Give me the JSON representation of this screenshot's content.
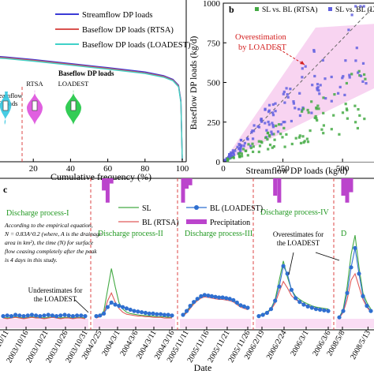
{
  "chart_data": [
    {
      "panel": "a",
      "type": "line",
      "xlabel": "Cumulative frequency (%)",
      "xticks": [
        "20",
        "40",
        "60",
        "80",
        "100"
      ],
      "xlim": [
        0,
        100
      ],
      "ylim": [
        0,
        100
      ],
      "legend": "top-right",
      "series": [
        {
          "name": "Streamflow DP loads",
          "color": "#3b3bd6",
          "x": [
            0,
            5,
            20,
            40,
            60,
            80,
            90,
            95,
            98,
            99.3,
            100
          ],
          "y": [
            65.5,
            65.1,
            63.5,
            61,
            58.5,
            55.8,
            53.5,
            51.2,
            47.5,
            38,
            1
          ]
        },
        {
          "name": "Baseflow DP loads (RTSA)",
          "color": "#d9534f",
          "x": [
            0,
            5,
            20,
            40,
            60,
            80,
            90,
            95,
            98,
            99.3,
            100
          ],
          "y": [
            65,
            64.6,
            63,
            60.5,
            58,
            55.2,
            53,
            50.7,
            47,
            37,
            1
          ]
        },
        {
          "name": "Baseflow DP loads (LOADEST)",
          "color": "#3fd1c8",
          "x": [
            0,
            5,
            20,
            40,
            60,
            80,
            90,
            95,
            98,
            99.3,
            100
          ],
          "y": [
            64.5,
            64.1,
            62.5,
            60,
            57.5,
            54.8,
            52.5,
            50.3,
            46.5,
            36.5,
            1
          ]
        }
      ],
      "inset_violin": {
        "labels": [
          "Baseflow DP loads",
          "RTSA",
          "LOADEST"
        ],
        "colors": {
          "streamflow": "#33c7e0",
          "rtsa": "#e060e0",
          "loadest": "#33cc55"
        }
      }
    },
    {
      "panel": "b",
      "label": "b",
      "type": "scatter",
      "xlabel": "Streamflow DP loads (kg/d)",
      "ylabel": "Baseflow DP loads (kg/d)",
      "xlim": [
        0,
        1000
      ],
      "ylim": [
        0,
        1000
      ],
      "xticks": [
        "0",
        "250",
        "500"
      ],
      "yticks": [
        "0",
        "250",
        "500",
        "750",
        "1000"
      ],
      "annotation": [
        "Overestimation",
        "by LOADEST"
      ],
      "legend": "top",
      "series": [
        {
          "name": "SL vs. BL (RTSA)",
          "color": "#44aa44",
          "marker": "square"
        },
        {
          "name": "SL vs. BL (LOADEST)",
          "color": "#6060e0",
          "marker": "square"
        }
      ]
    },
    {
      "panel": "c",
      "label": "c",
      "type": "line",
      "xlabel": "Date",
      "legend_items": [
        {
          "name": "SL",
          "color": "#44aa44"
        },
        {
          "name": "BL (RTSA)",
          "color": "#e05a5a"
        },
        {
          "name": "BL (LOADEST)",
          "color": "#2f6fd0"
        },
        {
          "name": "Precipitation",
          "color": "#bb44cc"
        }
      ],
      "processes": [
        {
          "title": "Discharge process-I",
          "ticks": [
            "2003/10/11",
            "2003/10/16",
            "2003/10/21",
            "2003/10/26",
            "2003/10/31"
          ],
          "sl": [
            12,
            11,
            12,
            13,
            12,
            11,
            12,
            13,
            12,
            12,
            11,
            12,
            13,
            12,
            11,
            12,
            12,
            11,
            12,
            12,
            11
          ],
          "rtsa": [
            11,
            10,
            11,
            12,
            11,
            10,
            11,
            12,
            11,
            11,
            10,
            11,
            12,
            11,
            10,
            11,
            11,
            10,
            11,
            11,
            10
          ],
          "loadest": [
            14,
            15,
            14,
            16,
            15,
            14,
            15,
            16,
            15,
            14,
            15,
            16,
            15,
            14,
            15,
            16,
            15,
            14,
            15,
            15,
            14
          ],
          "precip": [
            0,
            0,
            0,
            0,
            0,
            0,
            0,
            0,
            0,
            0,
            0,
            0,
            0,
            0,
            0,
            0,
            0,
            0,
            0,
            0,
            0
          ],
          "notes": [
            "According to the empirical equation,",
            "N = 0.83A^0.2 (where, A is the drainage",
            "area in km²), the time (N) for surface",
            "flow ceasing completely after the peak",
            "is 4 days in this study."
          ],
          "callout": [
            "Underestimates for",
            "the LOADEST"
          ]
        },
        {
          "title": "Discharge process-II",
          "ticks": [
            "2004/2/25",
            "2004/3/1",
            "2004/3/6",
            "2004/3/11",
            "2004/3/16"
          ],
          "sl": [
            12,
            14,
            22,
            55,
            88,
            60,
            35,
            25,
            20,
            18,
            17,
            16,
            15,
            15,
            14,
            14,
            13,
            13,
            13,
            12,
            12
          ],
          "rtsa": [
            11,
            13,
            18,
            38,
            50,
            36,
            26,
            20,
            17,
            16,
            15,
            14,
            14,
            13,
            13,
            12,
            12,
            12,
            11,
            11,
            11
          ],
          "loadest": [
            14,
            15,
            18,
            28,
            35,
            32,
            30,
            28,
            26,
            24,
            22,
            21,
            20,
            19,
            18,
            18,
            17,
            17,
            16,
            16,
            15
          ],
          "precip": [
            0,
            0,
            7,
            14,
            3,
            0,
            0,
            0,
            0,
            0,
            0,
            0,
            0,
            0,
            0,
            0,
            0,
            0,
            0,
            0,
            0
          ],
          "callout": []
        },
        {
          "title": "Discharge process-III",
          "ticks": [
            "2005/11/11",
            "2005/11/16",
            "2005/11/21",
            "2005/11/26"
          ],
          "sl": [
            15,
            20,
            28,
            35,
            40,
            44,
            46,
            45,
            44,
            43,
            42,
            42,
            41,
            40,
            38,
            34,
            30,
            28,
            26
          ],
          "rtsa": [
            14,
            19,
            26,
            33,
            38,
            42,
            44,
            43,
            42,
            41,
            40,
            40,
            39,
            38,
            36,
            32,
            28,
            26,
            24
          ],
          "loadest": [
            16,
            22,
            30,
            36,
            41,
            45,
            47,
            46,
            45,
            44,
            43,
            43,
            42,
            41,
            39,
            35,
            31,
            29,
            27
          ],
          "precip": [
            14,
            6,
            4,
            0,
            0,
            0,
            0,
            0,
            0,
            0,
            0,
            0,
            0,
            0,
            0,
            0,
            0,
            0,
            0
          ],
          "callout": []
        },
        {
          "title": "Discharge process-IV",
          "ticks": [
            "2006/2/19",
            "2006/2/24",
            "2006/3/1",
            "2006/3/6"
          ],
          "sl": [
            15,
            17,
            20,
            26,
            40,
            70,
            100,
            75,
            55,
            45,
            40,
            36,
            33,
            30,
            28,
            27,
            26,
            25
          ],
          "rtsa": [
            14,
            16,
            19,
            24,
            34,
            52,
            68,
            58,
            46,
            40,
            36,
            33,
            30,
            28,
            26,
            25,
            24,
            23
          ],
          "loadest": [
            14,
            16,
            19,
            25,
            38,
            60,
            92,
            80,
            55,
            42,
            36,
            32,
            29,
            27,
            25,
            24,
            23,
            22
          ],
          "precip": [
            0,
            0,
            0,
            0,
            10,
            14,
            0,
            0,
            0,
            0,
            0,
            0,
            0,
            0,
            0,
            0,
            0,
            0
          ],
          "callout": [
            "Overestimates for",
            "the LOADEST"
          ]
        },
        {
          "title": "D",
          "ticks": [
            "2008/5/8",
            "2008/5/13"
          ],
          "sl": [
            12,
            25,
            60,
            110,
            140,
            90,
            50,
            35,
            25
          ],
          "rtsa": [
            11,
            20,
            40,
            70,
            80,
            60,
            40,
            28,
            20
          ],
          "loadest": [
            12,
            22,
            50,
            90,
            120,
            80,
            45,
            30,
            22
          ],
          "precip": [
            0,
            10,
            14,
            8,
            0,
            0,
            0,
            0,
            0
          ],
          "callout": []
        }
      ]
    }
  ]
}
